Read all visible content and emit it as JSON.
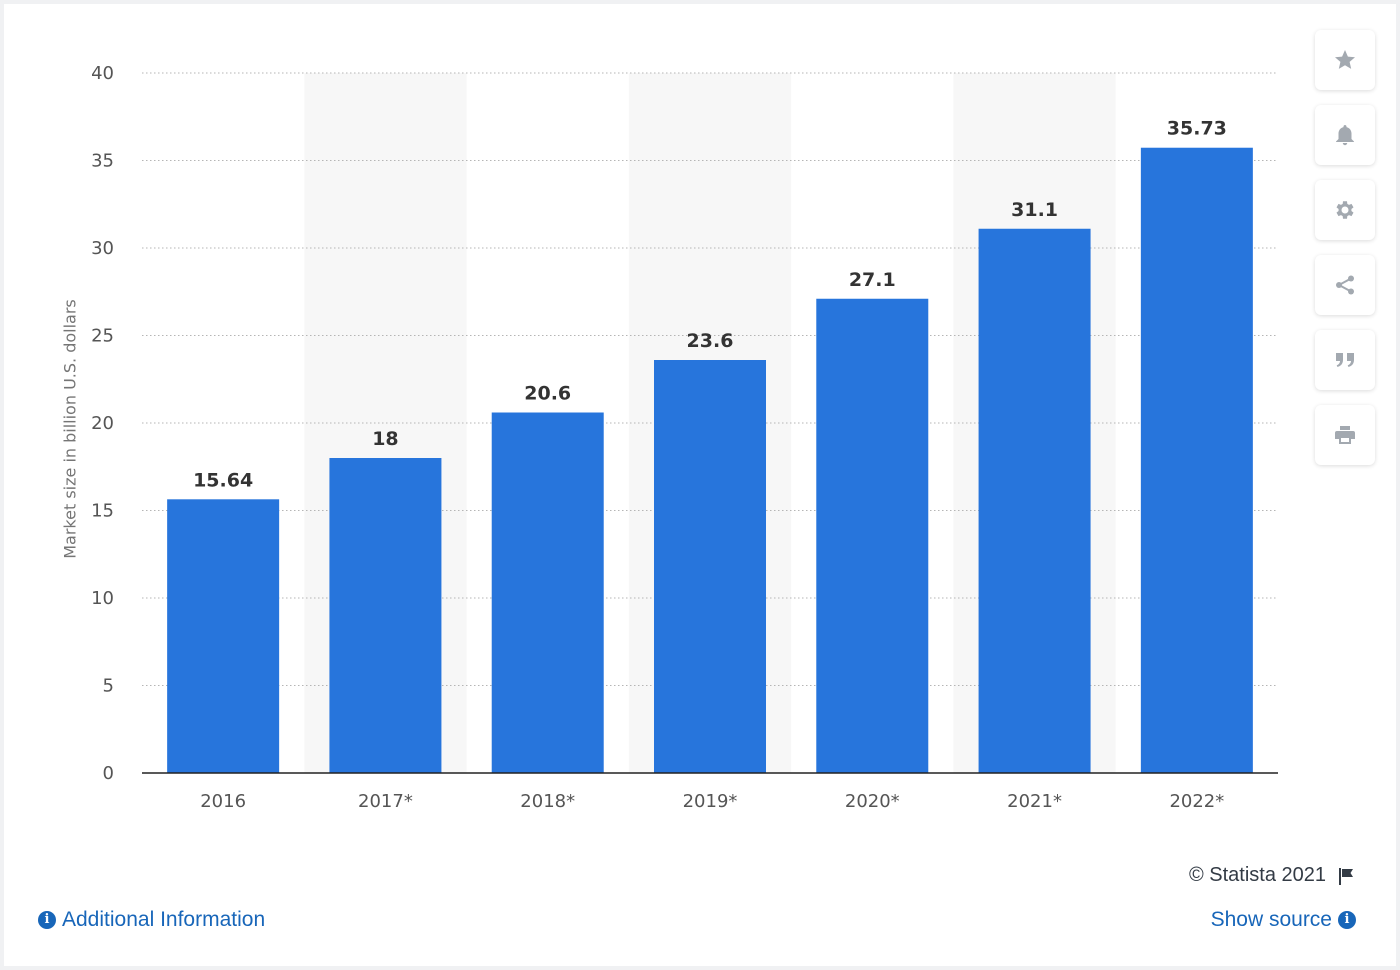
{
  "chart_data": {
    "type": "bar",
    "categories": [
      "2016",
      "2017*",
      "2018*",
      "2019*",
      "2020*",
      "2021*",
      "2022*"
    ],
    "values": [
      15.64,
      18,
      20.6,
      23.6,
      27.1,
      31.1,
      35.73
    ],
    "value_labels": [
      "15.64",
      "18",
      "20.6",
      "23.6",
      "27.1",
      "31.1",
      "35.73"
    ],
    "ylabel": "Market size in billion U.S. dollars",
    "ylim": [
      0,
      40
    ],
    "yticks": [
      0,
      5,
      10,
      15,
      20,
      25,
      30,
      35,
      40
    ],
    "grid": true,
    "bar_color": "#2775dc",
    "band_color": "#f7f7f7"
  },
  "toolbar": {
    "buttons": [
      {
        "icon": "star-icon",
        "label": "Favorite"
      },
      {
        "icon": "bell-icon",
        "label": "Notifications"
      },
      {
        "icon": "gear-icon",
        "label": "Settings"
      },
      {
        "icon": "share-icon",
        "label": "Share"
      },
      {
        "icon": "quote-icon",
        "label": "Cite"
      },
      {
        "icon": "print-icon",
        "label": "Print"
      }
    ]
  },
  "footer": {
    "copyright": "© Statista 2021",
    "additional_info": "Additional Information",
    "show_source": "Show source"
  },
  "colors": {
    "link": "#1866b9",
    "icon": "#a3a9b0"
  }
}
